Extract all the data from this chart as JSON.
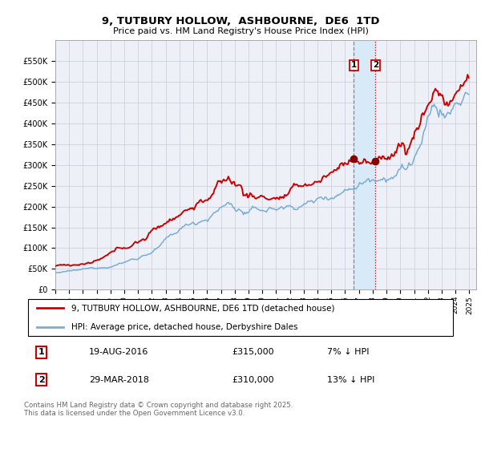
{
  "title": "9, TUTBURY HOLLOW,  ASHBOURNE,  DE6  1TD",
  "subtitle": "Price paid vs. HM Land Registry's House Price Index (HPI)",
  "legend_line1": "9, TUTBURY HOLLOW, ASHBOURNE, DE6 1TD (detached house)",
  "legend_line2": "HPI: Average price, detached house, Derbyshire Dales",
  "footer": "Contains HM Land Registry data © Crown copyright and database right 2025.\nThis data is licensed under the Open Government Licence v3.0.",
  "sale1_date": "19-AUG-2016",
  "sale1_price": 315000,
  "sale1_hpi": "7% ↓ HPI",
  "sale1_label": "1",
  "sale2_date": "29-MAR-2018",
  "sale2_price": 310000,
  "sale2_hpi": "13% ↓ HPI",
  "sale2_label": "2",
  "red_color": "#cc0000",
  "blue_color": "#7aacd6",
  "marker_color": "#880000",
  "vline1_color": "#888888",
  "vline2_color": "#cc0000",
  "shade_color": "#d8eaf8",
  "bg_color": "#eef0f8",
  "grid_color": "#c8cad8",
  "ylim": [
    0,
    600000
  ],
  "year_start": 1995,
  "year_end": 2025
}
